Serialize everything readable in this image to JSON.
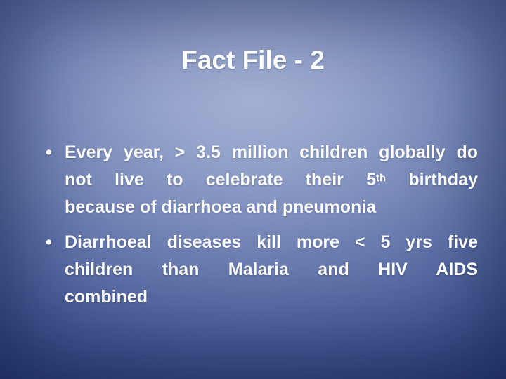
{
  "slide": {
    "title": "Fact File - 2",
    "bullet_glyph": "•",
    "colors": {
      "background_center": "#a0aed3",
      "background_edge": "#1d2f6e",
      "title_text": "#fdfdfe",
      "body_text": "#fdfdfe"
    },
    "bullets": [
      {
        "lines": [
          {
            "justified": true,
            "segments": [
              {
                "text": "Every year, > 3.5 million children globally do"
              }
            ]
          },
          {
            "justified": true,
            "segments": [
              {
                "text": "not live to celebrate their 5"
              },
              {
                "text": "th",
                "superscript": true
              },
              {
                "text": " birthday"
              }
            ]
          },
          {
            "justified": false,
            "segments": [
              {
                "text": "because of diarrhoea and pneumonia"
              }
            ]
          }
        ]
      },
      {
        "lines": [
          {
            "justified": true,
            "segments": [
              {
                "text": "Diarrhoeal diseases kill more < 5 yrs five"
              }
            ]
          },
          {
            "justified": true,
            "segments": [
              {
                "text": "children than Malaria and HIV AIDS"
              }
            ]
          },
          {
            "justified": false,
            "segments": [
              {
                "text": "combined"
              }
            ]
          }
        ]
      }
    ]
  }
}
